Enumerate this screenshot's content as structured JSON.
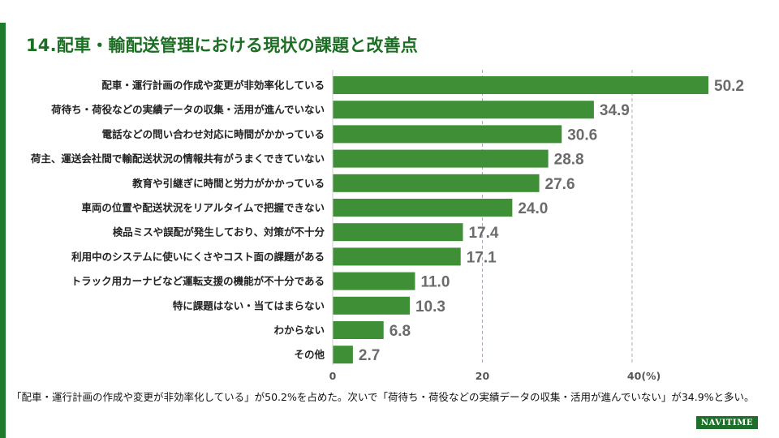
{
  "title": "14.配車・輸配送管理における現状の課題と改善点",
  "caption": "「配車・運行計画の作成や変更が非効率化している」が50.2%を占めた。次いで「荷待ち・荷役などの実績データの収集・活用が進んでいない」が34.9%と多い。",
  "logo_text": "NAVITIME",
  "colors": {
    "bar": "#3e8f36",
    "value": "#6b6b6b",
    "brand": "#1f7a2b",
    "title": "#1c6e23"
  },
  "chart_data": {
    "type": "bar",
    "orientation": "horizontal",
    "categories": [
      "配車・運行計画の作成や変更が非効率化している",
      "荷待ち・荷役などの実績データの収集・活用が進んでいない",
      "電話などの問い合わせ対応に時間がかかっている",
      "荷主、運送会社間で輸配送状況の情報共有がうまくできていない",
      "教育や引継ぎに時間と労力がかかっている",
      "車両の位置や配送状況をリアルタイムで把握できない",
      "検品ミスや誤配が発生しており、対策が不十分",
      "利用中のシステムに使いにくさやコスト面の課題がある",
      "トラック用カーナビなど運転支援の機能が不十分である",
      "特に課題はない・当てはまらない",
      "わからない",
      "その他"
    ],
    "values": [
      50.2,
      34.9,
      30.6,
      28.8,
      27.6,
      24.0,
      17.4,
      17.1,
      11.0,
      10.3,
      6.8,
      2.7
    ],
    "value_labels": [
      "50.2",
      "34.9",
      "30.6",
      "28.8",
      "27.6",
      "24.0",
      "17.4",
      "17.1",
      "11.0",
      "10.3",
      "6.8",
      "2.7"
    ],
    "xlim": [
      0,
      50.2
    ],
    "xticks": [
      "0",
      "20",
      "40(%)"
    ],
    "xtick_values": [
      0,
      20,
      40
    ],
    "grid": "dashed vertical at ticks"
  }
}
